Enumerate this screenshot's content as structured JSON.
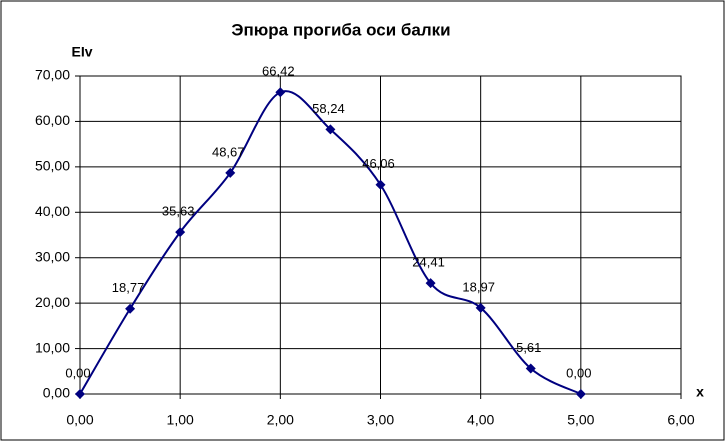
{
  "chart_data": {
    "type": "line",
    "title": "Эпюра прогиба оси балки",
    "y_label": "EIv",
    "x_label": "x",
    "x": [
      0,
      0.5,
      1,
      1.5,
      2,
      2.5,
      3,
      3.5,
      4,
      4.5,
      5
    ],
    "series": [
      {
        "name": "EIv",
        "color": "#000080",
        "values": [
          0,
          18.77,
          35.63,
          48.67,
          66.42,
          58.24,
          46.06,
          24.41,
          18.97,
          5.61,
          0
        ],
        "value_labels": [
          "0,00",
          "18,77",
          "35,63",
          "48,67",
          "66,42",
          "58,24",
          "46,06",
          "24,41",
          "18,97",
          "5,61",
          "0,00"
        ]
      }
    ],
    "xlim": [
      0,
      6
    ],
    "xticks": [
      {
        "value": 0,
        "label": "0,00"
      },
      {
        "value": 1,
        "label": "1,00"
      },
      {
        "value": 2,
        "label": "2,00"
      },
      {
        "value": 3,
        "label": "3,00"
      },
      {
        "value": 4,
        "label": "4,00"
      },
      {
        "value": 5,
        "label": "5,00"
      },
      {
        "value": 6,
        "label": "6,00"
      }
    ],
    "ylim": [
      0,
      70
    ],
    "yticks": [
      {
        "value": 0,
        "label": "0,00"
      },
      {
        "value": 10,
        "label": "10,00"
      },
      {
        "value": 20,
        "label": "20,00"
      },
      {
        "value": 30,
        "label": "30,00"
      },
      {
        "value": 40,
        "label": "40,00"
      },
      {
        "value": 50,
        "label": "50,00"
      },
      {
        "value": 60,
        "label": "60,00"
      },
      {
        "value": 70,
        "label": "70,00"
      }
    ],
    "grid": true,
    "smooth": true,
    "marker": "diamond"
  }
}
